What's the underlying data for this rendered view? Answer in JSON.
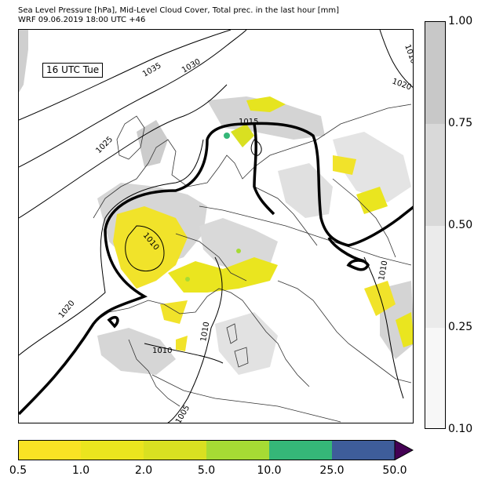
{
  "header": {
    "title_line1": "Sea Level Pressure [hPa], Mid-Level Cloud Cover, Total prec. in the last hour [mm]",
    "title_line2": "WRF 09.06.2019 18:00 UTC +46"
  },
  "map": {
    "time_label": "16 UTC Tue",
    "isobar_labels": [
      "1035",
      "1030",
      "1025",
      "1020",
      "1020",
      "1015",
      "1010",
      "1010",
      "1010",
      "1010",
      "1005",
      "1010"
    ]
  },
  "cloud_colorbar": {
    "ticks": [
      "1.00",
      "0.75",
      "0.50",
      "0.25",
      "0.10"
    ],
    "colors": [
      "#c8c8c8",
      "#d9d9d9",
      "#ebebeb",
      "#f7f7f7"
    ]
  },
  "precip_colorbar": {
    "ticks": [
      "0.5",
      "1.0",
      "2.0",
      "5.0",
      "10.0",
      "25.0",
      "50.0"
    ],
    "colors": [
      "#f9e324",
      "#ebe51e",
      "#d9e021",
      "#a6db34",
      "#35b778",
      "#3e5d9a",
      "#440154"
    ]
  }
}
